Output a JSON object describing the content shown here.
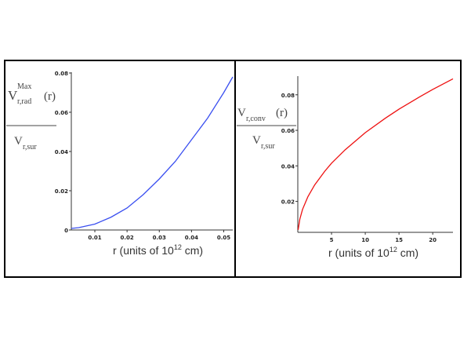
{
  "chart_data": [
    {
      "type": "line",
      "ylabel": {
        "numerator_base": "V",
        "numerator_sup": "Max",
        "numerator_sub": "r,rad",
        "numerator_arg": "(r)",
        "denominator_base": "V",
        "denominator_sub": "r,sur"
      },
      "xlabel": {
        "text": "r (units of 10",
        "sup": "12",
        "tail": " cm)"
      },
      "xlim": [
        0.0027,
        0.0528
      ],
      "ylim": [
        0,
        0.08
      ],
      "xticks": [
        "0.01",
        "0.02",
        "0.03",
        "0.04",
        "0.05"
      ],
      "yticks": [
        "0",
        "0.02",
        "0.04",
        "0.06",
        "0.08"
      ],
      "color": "#3a4ff0",
      "x": [
        0.0027,
        0.005,
        0.01,
        0.015,
        0.02,
        0.025,
        0.03,
        0.035,
        0.04,
        0.045,
        0.05,
        0.0528
      ],
      "y": [
        0.0008,
        0.0012,
        0.003,
        0.0065,
        0.0112,
        0.018,
        0.026,
        0.035,
        0.046,
        0.057,
        0.07,
        0.078
      ]
    },
    {
      "type": "line",
      "ylabel": {
        "numerator_base": "V",
        "numerator_sub": "r,conv",
        "numerator_arg": "(r)",
        "denominator_base": "V",
        "denominator_sub": "r,sur"
      },
      "xlabel": {
        "text": "r (units of 10",
        "sup": "12",
        "tail": " cm)"
      },
      "xlim": [
        0,
        23
      ],
      "ylim": [
        0.0026,
        0.0905
      ],
      "xticks": [
        "5",
        "10",
        "15",
        "20"
      ],
      "yticks": [
        "0.02",
        "0.04",
        "0.06",
        "0.08"
      ],
      "color": "#ee1111",
      "x": [
        0.05,
        0.3,
        0.7,
        1.5,
        2.5,
        4,
        5,
        7,
        10,
        13,
        15,
        18,
        20,
        23
      ],
      "y": [
        0.004,
        0.01,
        0.0155,
        0.0227,
        0.0293,
        0.037,
        0.0415,
        0.049,
        0.0587,
        0.0669,
        0.0719,
        0.0787,
        0.083,
        0.089
      ]
    }
  ]
}
